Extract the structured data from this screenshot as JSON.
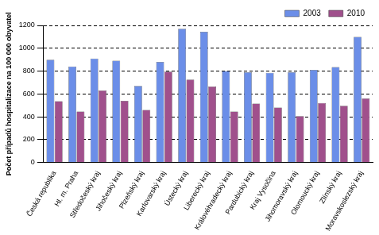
{
  "chart_data": {
    "type": "bar",
    "y_label": "Počet případů hospitalizace na 100 000 obyvatel",
    "categories": [
      "Česká republika",
      "Hl. m. Praha",
      "Středočeský kraj",
      "Jihočeský kraj",
      "Plzeňský kraj",
      "Karlovarský kraj",
      "Ústecký kraj",
      "Liberecký kraj",
      "Královéhradecký kraj",
      "Pardubický kraj",
      "Kraj Vysočina",
      "Jihomoravský kraj",
      "Olomoucký kraj",
      "Zlínský kraj",
      "Moravskoslezský kraj"
    ],
    "series": [
      {
        "name": "2003",
        "color": "#6b8ee8",
        "values": [
          900,
          840,
          910,
          890,
          670,
          880,
          1170,
          1145,
          800,
          790,
          785,
          790,
          810,
          835,
          1100
        ]
      },
      {
        "name": "2010",
        "color": "#a0508c",
        "values": [
          535,
          445,
          630,
          540,
          460,
          795,
          725,
          665,
          445,
          515,
          480,
          405,
          520,
          495,
          560
        ]
      }
    ],
    "ylim": [
      0,
      1200
    ],
    "yticks": [
      0,
      200,
      400,
      600,
      800,
      1000,
      1200
    ],
    "grid": true,
    "legend": "top"
  }
}
